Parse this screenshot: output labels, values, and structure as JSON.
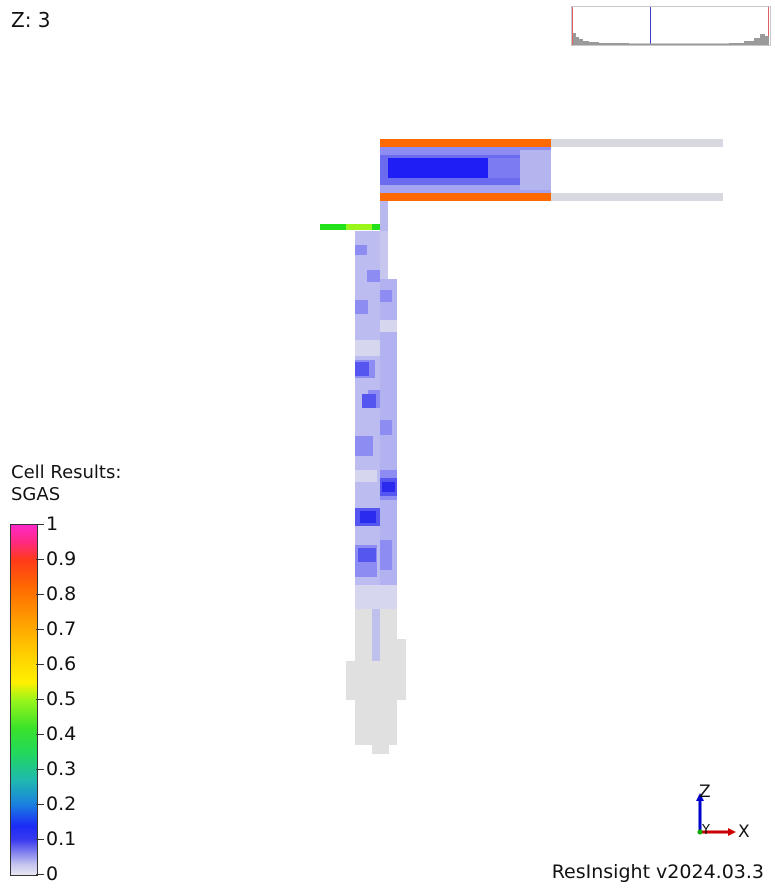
{
  "viewer": {
    "z_label": "Z: 3",
    "version": "ResInsight v2024.03.3"
  },
  "legend": {
    "title_line1": "Cell Results:",
    "title_line2": "SGAS",
    "labels": [
      "1",
      "0.9",
      "0.8",
      "0.7",
      "0.6",
      "0.5",
      "0.4",
      "0.3",
      "0.2",
      "0.1",
      "0"
    ],
    "colors": {
      "low": "#e8e8f2",
      "mid_low": "#1b2bf5",
      "mid": "#3be22a",
      "mid_high": "#ffa000",
      "high": "#ff28c8"
    }
  },
  "axes": {
    "z": "Z",
    "x": "X",
    "y": "Y",
    "x_color": "#cc0000",
    "z_color": "#0000cc",
    "y_color": "#00aa00"
  },
  "colors": {
    "orange_cells": "#ff6a00",
    "green_cells": "#22e01a",
    "lime_cells": "#9af51a",
    "light_gray_cells": "#e0e0e0",
    "pale_blue_cells": "#c4c4ef",
    "blue_cells": "#2b2bef"
  }
}
